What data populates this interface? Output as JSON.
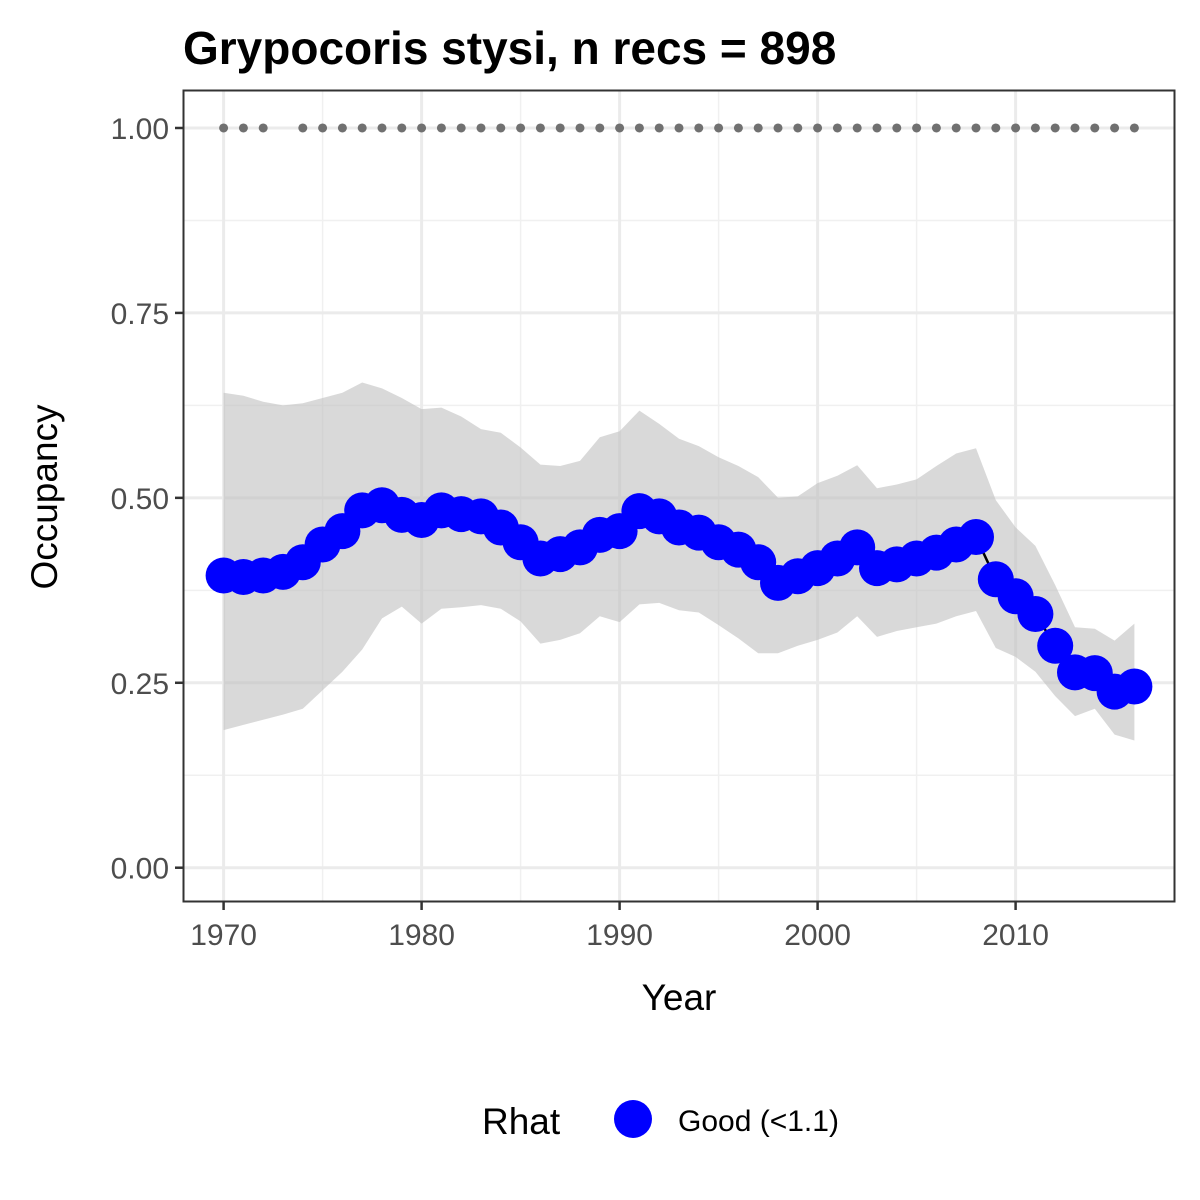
{
  "chart_data": {
    "type": "line",
    "title": "Grypocoris stysi, n recs = 898",
    "xlabel": "Year",
    "ylabel": "Occupancy",
    "xlim": [
      1968,
      2018
    ],
    "ylim": [
      -0.045,
      1.05
    ],
    "x_ticks": [
      1970,
      1980,
      1990,
      2000,
      2010
    ],
    "x_tick_labels": [
      "1970",
      "1980",
      "1990",
      "2000",
      "2010"
    ],
    "y_ticks": [
      0,
      0.25,
      0.5,
      0.75,
      1
    ],
    "y_tick_labels": [
      "0.00",
      "0.25",
      "0.50",
      "0.75",
      "1.00"
    ],
    "grid": true,
    "legend": {
      "title": "Rhat",
      "placement": "bottom",
      "entries": [
        {
          "label": "Good (<1.1)",
          "color": "#0000ff"
        }
      ]
    },
    "colors": {
      "points": "#0000ff",
      "ribbon": "#bfbfbf",
      "records": "#707070",
      "line": "#000000"
    },
    "series": [
      {
        "name": "Good (<1.1)",
        "x": [
          1970,
          1971,
          1972,
          1973,
          1974,
          1975,
          1976,
          1977,
          1978,
          1979,
          1980,
          1981,
          1982,
          1983,
          1984,
          1985,
          1986,
          1987,
          1988,
          1989,
          1990,
          1991,
          1992,
          1993,
          1994,
          1995,
          1996,
          1997,
          1998,
          1999,
          2000,
          2001,
          2002,
          2003,
          2004,
          2005,
          2006,
          2007,
          2008,
          2009,
          2010,
          2011,
          2012,
          2013,
          2014,
          2015,
          2016
        ],
        "values": [
          0.395,
          0.393,
          0.395,
          0.4,
          0.413,
          0.437,
          0.455,
          0.483,
          0.49,
          0.477,
          0.47,
          0.483,
          0.478,
          0.475,
          0.46,
          0.44,
          0.418,
          0.424,
          0.433,
          0.45,
          0.455,
          0.482,
          0.475,
          0.46,
          0.453,
          0.44,
          0.43,
          0.413,
          0.385,
          0.394,
          0.405,
          0.418,
          0.433,
          0.405,
          0.41,
          0.418,
          0.426,
          0.437,
          0.447,
          0.39,
          0.367,
          0.343,
          0.3,
          0.264,
          0.263,
          0.238,
          0.245
        ],
        "lower": [
          0.186,
          0.193,
          0.2,
          0.207,
          0.215,
          0.24,
          0.265,
          0.295,
          0.337,
          0.353,
          0.33,
          0.35,
          0.352,
          0.355,
          0.35,
          0.333,
          0.303,
          0.308,
          0.317,
          0.34,
          0.332,
          0.356,
          0.358,
          0.348,
          0.345,
          0.328,
          0.31,
          0.29,
          0.29,
          0.3,
          0.308,
          0.318,
          0.34,
          0.312,
          0.32,
          0.325,
          0.33,
          0.34,
          0.347,
          0.297,
          0.285,
          0.265,
          0.232,
          0.205,
          0.215,
          0.18,
          0.172
        ],
        "upper": [
          0.642,
          0.638,
          0.63,
          0.625,
          0.628,
          0.635,
          0.642,
          0.656,
          0.648,
          0.635,
          0.62,
          0.622,
          0.61,
          0.593,
          0.588,
          0.568,
          0.545,
          0.543,
          0.55,
          0.582,
          0.59,
          0.618,
          0.6,
          0.58,
          0.57,
          0.555,
          0.543,
          0.528,
          0.5,
          0.502,
          0.52,
          0.53,
          0.544,
          0.513,
          0.518,
          0.525,
          0.543,
          0.56,
          0.567,
          0.497,
          0.46,
          0.435,
          0.382,
          0.325,
          0.323,
          0.307,
          0.33
        ]
      }
    ],
    "records": {
      "x": [
        1970,
        1971,
        1972,
        1974,
        1975,
        1976,
        1977,
        1978,
        1979,
        1980,
        1981,
        1982,
        1983,
        1984,
        1985,
        1986,
        1987,
        1988,
        1989,
        1990,
        1991,
        1992,
        1993,
        1994,
        1995,
        1996,
        1997,
        1998,
        1999,
        2000,
        2001,
        2002,
        2003,
        2004,
        2005,
        2006,
        2007,
        2008,
        2009,
        2010,
        2011,
        2012,
        2013,
        2014,
        2015,
        2016
      ],
      "y": 1.0
    }
  }
}
